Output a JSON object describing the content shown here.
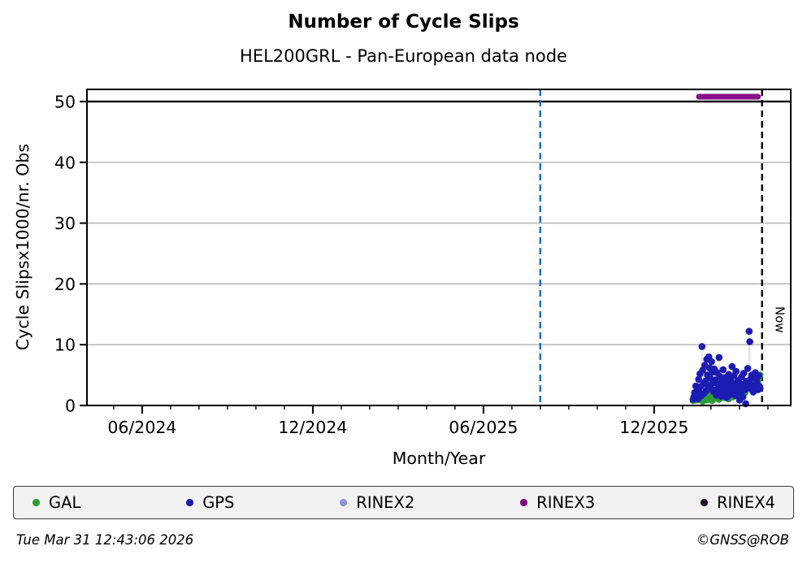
{
  "title": "Number of Cycle Slips",
  "subtitle": "HEL200GRL - Pan-European data node",
  "footer": {
    "timestamp": "Tue Mar 31 12:43:06 2026",
    "credit": "©GNSS@ROB"
  },
  "legend": {
    "items": [
      {
        "label": "GAL",
        "color": "#2e9d36"
      },
      {
        "label": "GPS",
        "color": "#1c1cb3"
      },
      {
        "label": "RINEX2",
        "color": "#9292d8"
      },
      {
        "label": "RINEX3",
        "color": "#800d80"
      },
      {
        "label": "RINEX4",
        "color": "#26092b"
      }
    ]
  },
  "chart_data": {
    "type": "scatter",
    "title": "Number of Cycle Slips",
    "subtitle": "HEL200GRL - Pan-European data node",
    "xlabel": "Month/Year",
    "ylabel": "Cycle Slipsx1000/nr. Obs",
    "grid": "horizontal-only",
    "x_axis": {
      "min": 2024.255,
      "max": 2026.317,
      "major_ticks": [
        {
          "t": 2024.4167,
          "label": "06/2024"
        },
        {
          "t": 2024.9167,
          "label": "12/2024"
        },
        {
          "t": 2025.4167,
          "label": "06/2025"
        },
        {
          "t": 2025.9167,
          "label": "12/2025"
        }
      ],
      "minor_tick_step_years": 0.08333
    },
    "y_axis": {
      "min": 0,
      "max": 52,
      "ticks": [
        0,
        10,
        20,
        30,
        40,
        50
      ]
    },
    "threshold_line": {
      "y": 50,
      "color": "#000000"
    },
    "reference_lines": [
      {
        "name": "blue-reference-line",
        "x": 2025.583,
        "style": "dashed",
        "color": "#1a6bc4",
        "label": ""
      },
      {
        "name": "now-line",
        "x": 2026.233,
        "style": "dashed",
        "color": "#000000",
        "label": "Now"
      }
    ],
    "series": [
      {
        "name": "GAL",
        "color": "#2e9d36",
        "marker": "circle",
        "points": [
          [
            2026.031,
            0.8
          ],
          [
            2026.035,
            1.2
          ],
          [
            2026.039,
            0.9
          ],
          [
            2026.043,
            1.4
          ],
          [
            2026.047,
            1.0
          ],
          [
            2026.051,
            1.6
          ],
          [
            2026.055,
            1.1
          ],
          [
            2026.059,
            0.7
          ],
          [
            2026.063,
            1.8
          ],
          [
            2026.067,
            1.3
          ],
          [
            2026.071,
            0.9
          ],
          [
            2026.075,
            1.9
          ],
          [
            2026.079,
            1.5
          ],
          [
            2026.083,
            1.1
          ],
          [
            2026.087,
            0.8
          ],
          [
            2026.091,
            1.7
          ],
          [
            2026.095,
            1.2
          ],
          [
            2026.099,
            2.1
          ],
          [
            2026.103,
            1.6
          ],
          [
            2026.107,
            1.0
          ],
          [
            2026.111,
            1.4
          ],
          [
            2026.115,
            2.3
          ],
          [
            2026.119,
            1.8
          ],
          [
            2026.123,
            1.3
          ],
          [
            2026.127,
            2.0
          ],
          [
            2026.131,
            1.5
          ],
          [
            2026.135,
            1.1
          ],
          [
            2026.139,
            2.4
          ],
          [
            2026.143,
            1.9
          ],
          [
            2026.147,
            1.4
          ],
          [
            2026.151,
            2.6
          ],
          [
            2026.155,
            2.0
          ],
          [
            2026.159,
            1.6
          ],
          [
            2026.163,
            2.9
          ],
          [
            2026.167,
            2.3
          ],
          [
            2026.171,
            1.8
          ],
          [
            2026.175,
            3.1
          ],
          [
            2026.179,
            2.5
          ],
          [
            2026.183,
            2.1
          ],
          [
            2026.187,
            3.4
          ],
          [
            2026.191,
            2.8
          ],
          [
            2026.195,
            3.7
          ],
          [
            2026.199,
            3.2
          ],
          [
            2026.203,
            4.1
          ],
          [
            2026.207,
            3.6
          ],
          [
            2026.211,
            4.5
          ],
          [
            2026.215,
            3.9
          ],
          [
            2026.219,
            4.7
          ],
          [
            2026.223,
            4.3
          ],
          [
            2026.227,
            5.0
          ]
        ]
      },
      {
        "name": "GPS",
        "color": "#1c1cb3",
        "marker": "circle",
        "points": [
          [
            2026.031,
            1.0
          ],
          [
            2026.033,
            1.4
          ],
          [
            2026.035,
            2.1
          ],
          [
            2026.037,
            1.2
          ],
          [
            2026.039,
            3.2
          ],
          [
            2026.041,
            1.8
          ],
          [
            2026.043,
            2.6
          ],
          [
            2026.045,
            1.1
          ],
          [
            2026.047,
            4.3
          ],
          [
            2026.049,
            2.2
          ],
          [
            2026.051,
            5.2
          ],
          [
            2026.053,
            3.1
          ],
          [
            2026.055,
            1.6
          ],
          [
            2026.057,
            9.7
          ],
          [
            2026.059,
            5.8
          ],
          [
            2026.061,
            3.5
          ],
          [
            2026.063,
            2.0
          ],
          [
            2026.065,
            6.6
          ],
          [
            2026.067,
            4.0
          ],
          [
            2026.069,
            2.4
          ],
          [
            2026.071,
            7.6
          ],
          [
            2026.073,
            5.0
          ],
          [
            2026.075,
            3.3
          ],
          [
            2026.077,
            8.0
          ],
          [
            2026.079,
            6.2
          ],
          [
            2026.081,
            4.5
          ],
          [
            2026.083,
            2.8
          ],
          [
            2026.085,
            7.2
          ],
          [
            2026.087,
            5.5
          ],
          [
            2026.089,
            3.7
          ],
          [
            2026.091,
            2.3
          ],
          [
            2026.093,
            6.0
          ],
          [
            2026.095,
            4.2
          ],
          [
            2026.097,
            2.6
          ],
          [
            2026.099,
            1.7
          ],
          [
            2026.101,
            5.4
          ],
          [
            2026.103,
            3.6
          ],
          [
            2026.105,
            2.1
          ],
          [
            2026.107,
            7.9
          ],
          [
            2026.109,
            4.8
          ],
          [
            2026.111,
            2.9
          ],
          [
            2026.113,
            1.5
          ],
          [
            2026.115,
            3.9
          ],
          [
            2026.117,
            2.4
          ],
          [
            2026.119,
            5.9
          ],
          [
            2026.121,
            3.4
          ],
          [
            2026.123,
            1.9
          ],
          [
            2026.125,
            4.6
          ],
          [
            2026.127,
            2.7
          ],
          [
            2026.129,
            1.3
          ],
          [
            2026.131,
            3.8
          ],
          [
            2026.133,
            2.2
          ],
          [
            2026.135,
            5.1
          ],
          [
            2026.137,
            3.0
          ],
          [
            2026.139,
            1.8
          ],
          [
            2026.141,
            4.4
          ],
          [
            2026.143,
            2.5
          ],
          [
            2026.145,
            6.4
          ],
          [
            2026.147,
            3.7
          ],
          [
            2026.149,
            2.0
          ],
          [
            2026.151,
            4.9
          ],
          [
            2026.153,
            3.2
          ],
          [
            2026.155,
            1.6
          ],
          [
            2026.157,
            5.6
          ],
          [
            2026.159,
            3.5
          ],
          [
            2026.161,
            2.3
          ],
          [
            2026.163,
            4.1
          ],
          [
            2026.165,
            2.8
          ],
          [
            2026.167,
            0.9
          ],
          [
            2026.169,
            3.6
          ],
          [
            2026.171,
            2.1
          ],
          [
            2026.173,
            4.7
          ],
          [
            2026.175,
            3.0
          ],
          [
            2026.177,
            1.4
          ],
          [
            2026.179,
            5.3
          ],
          [
            2026.181,
            3.4
          ],
          [
            2026.183,
            2.6
          ],
          [
            2026.185,
            0.3
          ],
          [
            2026.187,
            4.0
          ],
          [
            2026.189,
            2.9
          ],
          [
            2026.191,
            6.1
          ],
          [
            2026.193,
            3.8
          ],
          [
            2026.195,
            12.2
          ],
          [
            2026.197,
            10.5
          ],
          [
            2026.199,
            4.3
          ],
          [
            2026.201,
            2.7
          ],
          [
            2026.203,
            5.0
          ],
          [
            2026.205,
            3.3
          ],
          [
            2026.207,
            2.2
          ],
          [
            2026.209,
            4.6
          ],
          [
            2026.211,
            3.1
          ],
          [
            2026.213,
            5.4
          ],
          [
            2026.215,
            2.9
          ],
          [
            2026.217,
            4.1
          ],
          [
            2026.219,
            3.5
          ],
          [
            2026.221,
            2.6
          ],
          [
            2026.223,
            4.9
          ],
          [
            2026.225,
            3.2
          ],
          [
            2026.227,
            2.8
          ]
        ]
      },
      {
        "name": "RINEX2",
        "color": "#9292d8",
        "marker": "circle",
        "points": []
      },
      {
        "name": "RINEX3",
        "color": "#8a0f8a",
        "marker": "line",
        "width": 7,
        "points": [
          [
            2026.048,
            50.8
          ],
          [
            2026.221,
            50.8
          ]
        ]
      },
      {
        "name": "RINEX4",
        "color": "#26092b",
        "marker": "circle",
        "points": []
      }
    ]
  }
}
